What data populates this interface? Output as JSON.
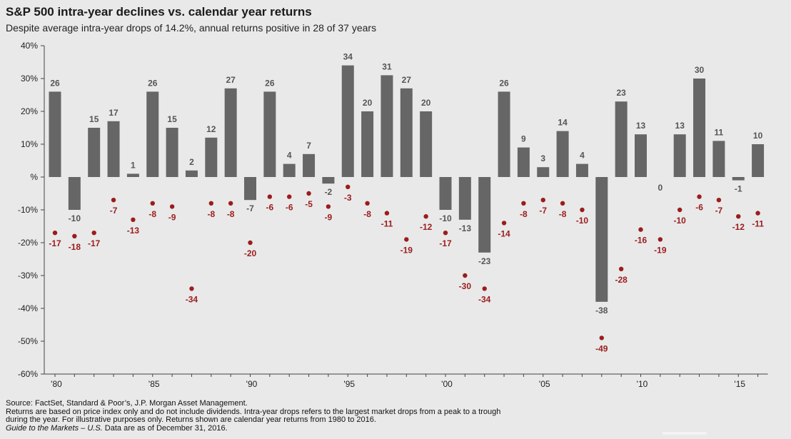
{
  "header": {
    "title": "S&P 500 intra-year declines vs. calendar year returns",
    "subtitle": "Despite average intra-year drops of 14.2%, annual returns positive in 28 of 37 years"
  },
  "footer": {
    "source": "Source: FactSet, Standard & Poor’s, J.P. Morgan Asset Management.",
    "note_line1": "Returns are based on price index only and do not include dividends. Intra-year drops refers to the largest market drops from a peak to a trough",
    "note_line2": "during the year. For illustrative purposes only. Returns shown are calendar year returns from 1980 to 2016.",
    "guide_title": "Guide to the Markets – U.S.",
    "guide_date": " Data are as of December 31, 2016."
  },
  "colors": {
    "bar": "#666666",
    "dot": "#9b1c1c",
    "dot_label": "#9b1c1c",
    "bar_label": "#555555"
  },
  "chart_data": {
    "type": "bar",
    "x": [
      1980,
      1981,
      1982,
      1983,
      1984,
      1985,
      1986,
      1987,
      1988,
      1989,
      1990,
      1991,
      1992,
      1993,
      1994,
      1995,
      1996,
      1997,
      1998,
      1999,
      2000,
      2001,
      2002,
      2003,
      2004,
      2005,
      2006,
      2007,
      2008,
      2009,
      2010,
      2011,
      2012,
      2013,
      2014,
      2015,
      2016
    ],
    "series": [
      {
        "kind": "bar",
        "values": [
          26,
          -10,
          15,
          17,
          1,
          26,
          15,
          2,
          12,
          27,
          -7,
          26,
          4,
          7,
          -2,
          34,
          20,
          31,
          27,
          20,
          -10,
          -13,
          -23,
          26,
          9,
          3,
          14,
          4,
          -38,
          23,
          13,
          0,
          13,
          30,
          11,
          -1,
          10
        ]
      },
      {
        "kind": "scatter",
        "values": [
          -17,
          -18,
          -17,
          -7,
          -13,
          -8,
          -9,
          -34,
          -8,
          -8,
          -20,
          -6,
          -6,
          -5,
          -9,
          -3,
          -8,
          -11,
          -19,
          -12,
          -17,
          -30,
          -34,
          -14,
          -8,
          -7,
          -8,
          -10,
          -49,
          -28,
          -16,
          -19,
          -10,
          -6,
          -7,
          -12,
          -11
        ]
      }
    ],
    "x_tick_labels": [
      {
        "year": 1980,
        "label": "'80"
      },
      {
        "year": 1985,
        "label": "'85"
      },
      {
        "year": 1990,
        "label": "'90"
      },
      {
        "year": 1995,
        "label": "'95"
      },
      {
        "year": 2000,
        "label": "'00"
      },
      {
        "year": 2005,
        "label": "'05"
      },
      {
        "year": 2010,
        "label": "'10"
      },
      {
        "year": 2015,
        "label": "'15"
      }
    ],
    "y_ticks": [
      {
        "value": 40,
        "label": "40%"
      },
      {
        "value": 30,
        "label": "30%"
      },
      {
        "value": 20,
        "label": "20%"
      },
      {
        "value": 10,
        "label": "10%"
      },
      {
        "value": 0,
        "label": "%"
      },
      {
        "value": -10,
        "label": "-10%"
      },
      {
        "value": -20,
        "label": "-20%"
      },
      {
        "value": -30,
        "label": "-30%"
      },
      {
        "value": -40,
        "label": "-40%"
      },
      {
        "value": -50,
        "label": "-50%"
      },
      {
        "value": -60,
        "label": "-60%"
      }
    ],
    "ylim": [
      -60,
      40
    ],
    "grid": false
  }
}
